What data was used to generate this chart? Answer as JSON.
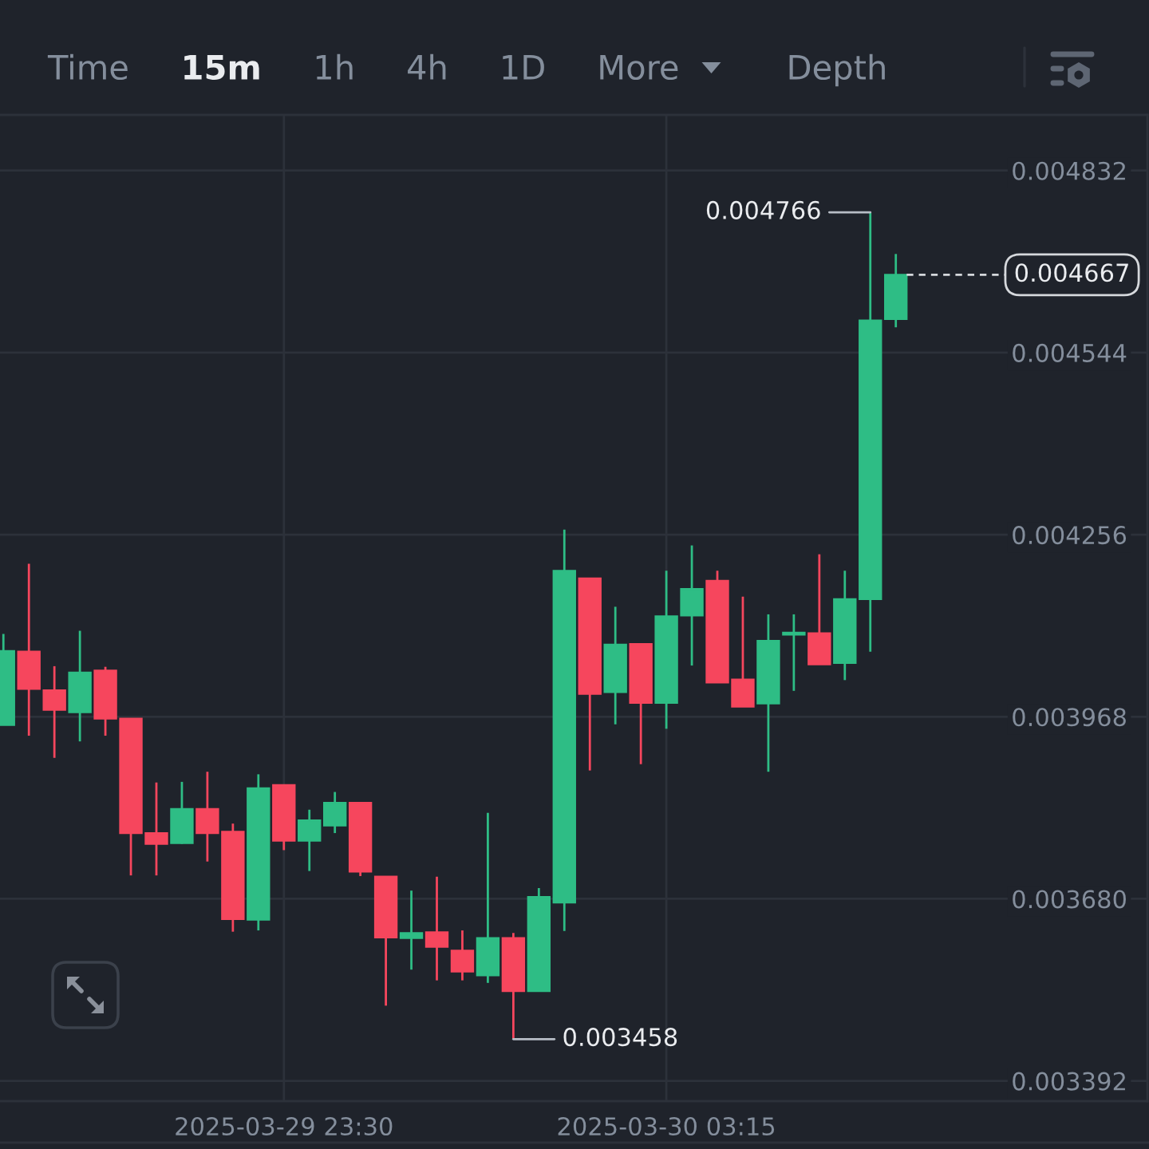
{
  "chart_data": {
    "type": "candlestick",
    "x": [
      "2025-03-29T20:45",
      "2025-03-29T21:00",
      "2025-03-29T21:15",
      "2025-03-29T21:30",
      "2025-03-29T21:45",
      "2025-03-29T22:00",
      "2025-03-29T22:15",
      "2025-03-29T22:30",
      "2025-03-29T22:45",
      "2025-03-29T23:00",
      "2025-03-29T23:15",
      "2025-03-29T23:30",
      "2025-03-29T23:45",
      "2025-03-30T00:00",
      "2025-03-30T00:15",
      "2025-03-30T00:30",
      "2025-03-30T00:45",
      "2025-03-30T01:00",
      "2025-03-30T01:15",
      "2025-03-30T01:30",
      "2025-03-30T01:45",
      "2025-03-30T02:00",
      "2025-03-30T02:15",
      "2025-03-30T02:30",
      "2025-03-30T02:45",
      "2025-03-30T03:00",
      "2025-03-30T03:15",
      "2025-03-30T03:30",
      "2025-03-30T03:45",
      "2025-03-30T04:00",
      "2025-03-30T04:15",
      "2025-03-30T04:30",
      "2025-03-30T04:45",
      "2025-03-30T05:00",
      "2025-03-30T05:15",
      "2025-03-30T05:30"
    ],
    "ohlc": [
      [
        0.003955,
        0.004099,
        0.003955,
        0.004072
      ],
      [
        0.004071,
        0.00421,
        0.003938,
        0.004012
      ],
      [
        0.00401,
        0.004048,
        0.003903,
        0.003979
      ],
      [
        0.003975,
        0.004104,
        0.003929,
        0.004038
      ],
      [
        0.004041,
        0.004047,
        0.003938,
        0.003965
      ],
      [
        0.003965,
        0.003965,
        0.003717,
        0.003784
      ],
      [
        0.003784,
        0.003864,
        0.003717,
        0.003767
      ],
      [
        0.003768,
        0.003865,
        0.003767,
        0.003822
      ],
      [
        0.003822,
        0.003881,
        0.003739,
        0.003784
      ],
      [
        0.003786,
        0.003799,
        0.003628,
        0.003648
      ],
      [
        0.003647,
        0.003877,
        0.00363,
        0.003855
      ],
      [
        0.00386,
        0.00386,
        0.003757,
        0.003772
      ],
      [
        0.003772,
        0.003821,
        0.003724,
        0.003804
      ],
      [
        0.003796,
        0.003849,
        0.003784,
        0.003832
      ],
      [
        0.003832,
        0.003832,
        0.003716,
        0.003723
      ],
      [
        0.003715,
        0.003715,
        0.003511,
        0.003619
      ],
      [
        0.003618,
        0.003693,
        0.003568,
        0.003626
      ],
      [
        0.003627,
        0.003715,
        0.003551,
        0.003604
      ],
      [
        0.003598,
        0.00363,
        0.003551,
        0.003565
      ],
      [
        0.003559,
        0.003816,
        0.003547,
        0.003618
      ],
      [
        0.003618,
        0.003626,
        0.003458,
        0.003534
      ],
      [
        0.003534,
        0.003697,
        0.003534,
        0.003683
      ],
      [
        0.003674,
        0.004264,
        0.003629,
        0.004199
      ],
      [
        0.004187,
        0.004187,
        0.003883,
        0.004004
      ],
      [
        0.004007,
        0.004142,
        0.003956,
        0.004082
      ],
      [
        0.004083,
        0.004084,
        0.003893,
        0.00399
      ],
      [
        0.00399,
        0.004199,
        0.003949,
        0.004127
      ],
      [
        0.004128,
        0.004239,
        0.004049,
        0.00417
      ],
      [
        0.004183,
        0.004199,
        0.004022,
        0.004022
      ],
      [
        0.004027,
        0.004158,
        0.003984,
        0.003984
      ],
      [
        0.003989,
        0.00413,
        0.003881,
        0.004088
      ],
      [
        0.004098,
        0.00413,
        0.004009,
        0.004101
      ],
      [
        0.0041,
        0.004225,
        0.004051,
        0.004051
      ],
      [
        0.004053,
        0.004199,
        0.004026,
        0.004154
      ],
      [
        0.004154,
        0.004766,
        0.004071,
        0.004595
      ],
      [
        0.004597,
        0.0047,
        0.004584,
        0.004667
      ]
    ],
    "colors": [
      "#2ebd85",
      "#f6465d",
      "#f6465d",
      "#2ebd85",
      "#f6465d",
      "#f6465d",
      "#f6465d",
      "#2ebd85",
      "#f6465d",
      "#f6465d",
      "#2ebd85",
      "#f6465d",
      "#2ebd85",
      "#2ebd85",
      "#f6465d",
      "#f6465d",
      "#2ebd85",
      "#f6465d",
      "#f6465d",
      "#2ebd85",
      "#f6465d",
      "#2ebd85",
      "#2ebd85",
      "#f6465d",
      "#2ebd85",
      "#f6465d",
      "#2ebd85",
      "#2ebd85",
      "#f6465d",
      "#f6465d",
      "#2ebd85",
      "#2ebd85",
      "#f6465d",
      "#2ebd85",
      "#2ebd85",
      "#2ebd85"
    ],
    "xlim": [
      "2025-03-29T20:43",
      "2025-03-30T07:58"
    ],
    "xticks": [
      {
        "value": "2025-03-29T23:30",
        "label": "2025-03-29 23:30"
      },
      {
        "value": "2025-03-30T03:15",
        "label": "2025-03-30 03:15"
      }
    ],
    "ylim": [
      0.00336,
      0.00492
    ],
    "yticks": [
      0.003392,
      {
        "value": 0.00368,
        "label": "0.003680"
      },
      0.003968,
      0.004256,
      0.004544,
      0.004832
    ],
    "grid": true,
    "ref_lines": [
      {
        "axis": "y",
        "value": 0.004667,
        "label": "0.004667",
        "line_style": "dashed",
        "color": "#d5d8dc"
      }
    ],
    "annotations": [
      "Time",
      "15m",
      "1h",
      "4h",
      "1D",
      "More",
      "Depth",
      {
        "text": "0.004766",
        "x": "2025-03-30T05:15",
        "y": 0.004766
      },
      {
        "text": "0.003458",
        "x": "2025-03-30T01:45",
        "y": 0.003458
      }
    ]
  }
}
